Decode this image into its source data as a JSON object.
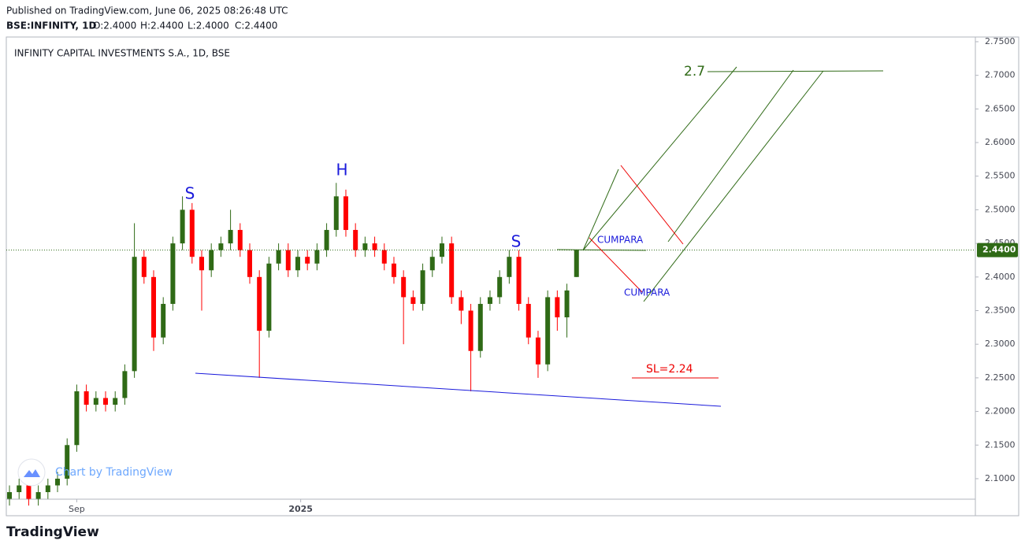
{
  "header": {
    "published": "Published on TradingView.com, June 06, 2025 08:26:48 UTC",
    "symbol": "BSE:INFINITY, 1D",
    "open": "O:2.4000",
    "high": "H:2.4400",
    "low": "L:2.4000",
    "close": "C:2.4400"
  },
  "footer": {
    "brand": "TradingView",
    "watermark": "Chart by TradingView"
  },
  "chart_data": {
    "type": "candlestick",
    "title": "INFINITY CAPITAL INVESTMENTS S.A., 1D, BSE",
    "up_color": "#2f6a16",
    "down_color": "#ff0000",
    "open": [
      2.07,
      2.08,
      2.09,
      2.07,
      2.08,
      2.09,
      2.1,
      2.15,
      2.23,
      2.21,
      2.22,
      2.21,
      2.22,
      2.26,
      2.43,
      2.4,
      2.31,
      2.36,
      2.45,
      2.5,
      2.43,
      2.41,
      2.44,
      2.45,
      2.47,
      2.44,
      2.4,
      2.32,
      2.42,
      2.44,
      2.41,
      2.43,
      2.42,
      2.44,
      2.47,
      2.52,
      2.47,
      2.44,
      2.45,
      2.44,
      2.42,
      2.4,
      2.37,
      2.36,
      2.41,
      2.43,
      2.45,
      2.37,
      2.35,
      2.29,
      2.36,
      2.37,
      2.4,
      2.43,
      2.36,
      2.31,
      2.27,
      2.37,
      2.34,
      2.4
    ],
    "high": [
      2.09,
      2.1,
      2.1,
      2.09,
      2.1,
      2.11,
      2.16,
      2.24,
      2.24,
      2.23,
      2.23,
      2.23,
      2.27,
      2.48,
      2.44,
      2.41,
      2.37,
      2.46,
      2.52,
      2.51,
      2.44,
      2.45,
      2.46,
      2.5,
      2.48,
      2.45,
      2.41,
      2.43,
      2.45,
      2.45,
      2.44,
      2.44,
      2.45,
      2.48,
      2.54,
      2.53,
      2.48,
      2.46,
      2.46,
      2.45,
      2.43,
      2.41,
      2.38,
      2.42,
      2.44,
      2.46,
      2.46,
      2.38,
      2.36,
      2.37,
      2.38,
      2.41,
      2.44,
      2.44,
      2.37,
      2.32,
      2.38,
      2.38,
      2.39,
      2.44
    ],
    "low": [
      2.06,
      2.07,
      2.06,
      2.06,
      2.07,
      2.08,
      2.09,
      2.14,
      2.2,
      2.2,
      2.2,
      2.2,
      2.21,
      2.25,
      2.39,
      2.29,
      2.3,
      2.35,
      2.44,
      2.42,
      2.35,
      2.4,
      2.43,
      2.44,
      2.43,
      2.39,
      2.25,
      2.31,
      2.41,
      2.4,
      2.4,
      2.41,
      2.41,
      2.43,
      2.46,
      2.46,
      2.43,
      2.43,
      2.43,
      2.41,
      2.39,
      2.3,
      2.35,
      2.35,
      2.4,
      2.42,
      2.36,
      2.33,
      2.23,
      2.28,
      2.35,
      2.36,
      2.39,
      2.35,
      2.3,
      2.25,
      2.26,
      2.32,
      2.31,
      2.4
    ],
    "close": [
      2.08,
      2.09,
      2.07,
      2.08,
      2.09,
      2.1,
      2.15,
      2.23,
      2.21,
      2.22,
      2.21,
      2.22,
      2.26,
      2.43,
      2.4,
      2.31,
      2.36,
      2.45,
      2.5,
      2.43,
      2.41,
      2.44,
      2.45,
      2.47,
      2.44,
      2.4,
      2.32,
      2.42,
      2.44,
      2.41,
      2.43,
      2.42,
      2.44,
      2.47,
      2.52,
      2.47,
      2.44,
      2.45,
      2.44,
      2.42,
      2.4,
      2.37,
      2.36,
      2.41,
      2.43,
      2.45,
      2.37,
      2.35,
      2.29,
      2.36,
      2.37,
      2.4,
      2.43,
      2.36,
      2.31,
      2.27,
      2.37,
      2.34,
      2.38,
      2.44
    ],
    "xlim": [
      -0.33,
      100.5
    ],
    "xticks": [
      {
        "value": 7,
        "label": "Sep"
      },
      {
        "value": 30.3,
        "label": "2025"
      }
    ],
    "ylim": [
      2.0695,
      2.757
    ],
    "yticks": [
      {
        "value": 2.1,
        "label": "2.1000"
      },
      {
        "value": 2.15,
        "label": "2.1500"
      },
      {
        "value": 2.2,
        "label": "2.2000"
      },
      {
        "value": 2.25,
        "label": "2.2500"
      },
      {
        "value": 2.3,
        "label": "2.3000"
      },
      {
        "value": 2.35,
        "label": "2.3500"
      },
      {
        "value": 2.4,
        "label": "2.4000"
      },
      {
        "value": 2.45,
        "label": "2.4500"
      },
      {
        "value": 2.5,
        "label": "2.5000"
      },
      {
        "value": 2.55,
        "label": "2.5500"
      },
      {
        "value": 2.6,
        "label": "2.6000"
      },
      {
        "value": 2.65,
        "label": "2.6500"
      },
      {
        "value": 2.7,
        "label": "2.7000"
      },
      {
        "value": 2.75,
        "label": "2.7500"
      }
    ],
    "last_price": {
      "value": 2.44,
      "label": "2.4400"
    },
    "annotations": {
      "left_shoulder": "S",
      "head": "H",
      "right_shoulder": "S",
      "buy_upper": "CUMPARA",
      "buy_lower": "CUMPARA",
      "target": "2.7",
      "stop_loss": "SL=2.24"
    }
  }
}
